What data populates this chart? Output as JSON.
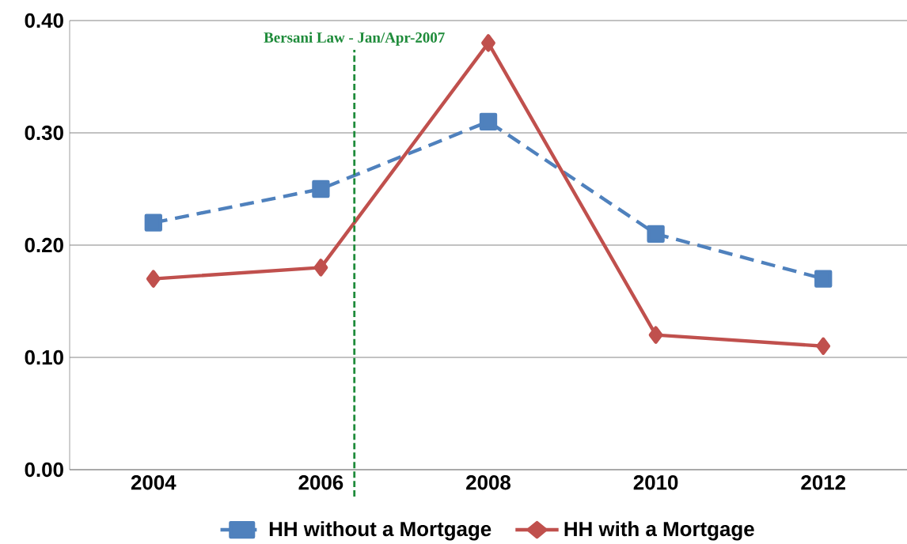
{
  "chart_data": {
    "type": "line",
    "x": [
      2004,
      2006,
      2008,
      2010,
      2012
    ],
    "xlim": [
      2003,
      2013
    ],
    "xticks": [
      2004,
      2006,
      2008,
      2010,
      2012
    ],
    "ylim": [
      0,
      0.4
    ],
    "yticks": [
      {
        "value": 0,
        "label": "0.00"
      },
      {
        "value": 0.1,
        "label": "0.10"
      },
      {
        "value": 0.2,
        "label": "0.20"
      },
      {
        "value": 0.3,
        "label": "0.30"
      },
      {
        "value": 0.4,
        "label": "0.40"
      }
    ],
    "series": [
      {
        "name": "HH without a Mortgage",
        "color": "#4f81bd",
        "marker": "square",
        "line_style": "dashed",
        "values": [
          0.22,
          0.25,
          0.31,
          0.21,
          0.17
        ]
      },
      {
        "name": "HH with a Mortgage",
        "color": "#c0504d",
        "marker": "diamond",
        "line_style": "solid",
        "values": [
          0.17,
          0.18,
          0.38,
          0.12,
          0.11
        ]
      }
    ],
    "ref_lines": [
      {
        "axis": "x",
        "value": 2006.4,
        "label": "Bersani Law - Jan/Apr-2007",
        "color": "#1e8b3a",
        "line_style": "dashed"
      }
    ],
    "grid": "y",
    "legend": "bottom"
  }
}
